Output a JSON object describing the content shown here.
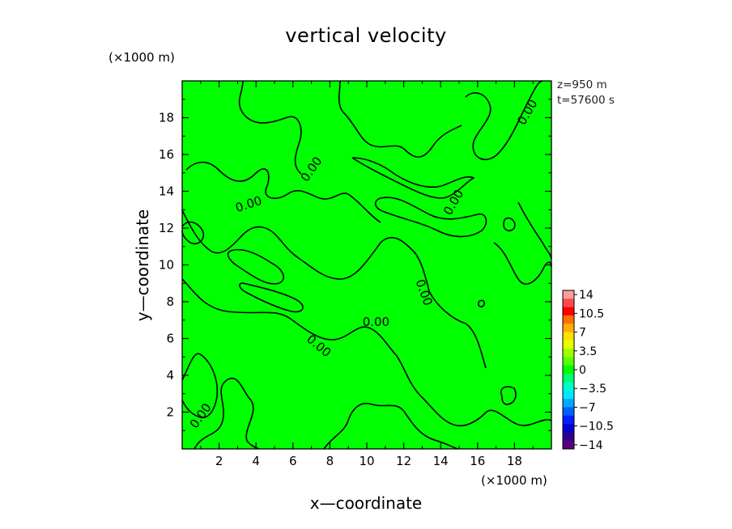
{
  "chart_data": {
    "type": "heatmap",
    "title": "vertical velocity",
    "xlabel": "x—coordinate",
    "ylabel": "y—coordinate",
    "x_unit": "(×1000 m)",
    "y_unit": "(×1000 m)",
    "info": [
      "z=950 m",
      "t=57600 s"
    ],
    "xlim": [
      0,
      20
    ],
    "ylim": [
      0,
      20
    ],
    "xticks": [
      2,
      4,
      6,
      8,
      10,
      12,
      14,
      16,
      18
    ],
    "yticks": [
      2,
      4,
      6,
      8,
      10,
      12,
      14,
      16,
      18
    ],
    "field_value_range": [
      -3.5,
      3.5
    ],
    "field_color": "#00ff00",
    "contour_level": 0.0,
    "contour_labels": [
      {
        "text": "0.00",
        "x": 3.6,
        "y": 13.3,
        "angle": -18
      },
      {
        "text": "0.00",
        "x": 7.0,
        "y": 15.2,
        "angle": -55
      },
      {
        "text": "0.00",
        "x": 18.7,
        "y": 18.3,
        "angle": -60
      },
      {
        "text": "0.00",
        "x": 14.7,
        "y": 13.4,
        "angle": -60
      },
      {
        "text": "0.00",
        "x": 13.1,
        "y": 8.5,
        "angle": 70
      },
      {
        "text": "0.00",
        "x": 10.5,
        "y": 6.9,
        "angle": 0
      },
      {
        "text": "0.00",
        "x": 7.4,
        "y": 5.6,
        "angle": 40
      },
      {
        "text": "0.00",
        "x": 1.0,
        "y": 1.8,
        "angle": -55
      }
    ],
    "colorbar": {
      "labels": [
        "14",
        "10.5",
        "7",
        "3.5",
        "0",
        "−3.5",
        "−7",
        "−10.5",
        "−14"
      ],
      "colors_top_to_bottom": [
        "#ff9c9c",
        "#ff4a4a",
        "#ff0000",
        "#ff7000",
        "#ffae00",
        "#ffe000",
        "#e8ff00",
        "#9cff00",
        "#5cff00",
        "#00ff00",
        "#00ff6e",
        "#00ffc8",
        "#00e8ff",
        "#00a8ff",
        "#0060ff",
        "#0020ff",
        "#0000cc",
        "#2a0090",
        "#5a007a"
      ]
    }
  }
}
